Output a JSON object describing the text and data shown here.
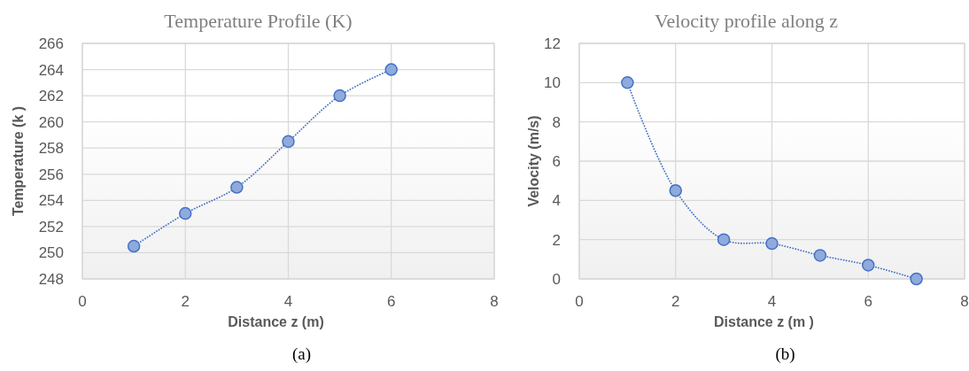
{
  "chart_data": [
    {
      "type": "line",
      "title": "Temperature Profile (K)",
      "xlabel": "Distance z (m)",
      "ylabel": "Temperature (k )",
      "x": [
        1,
        2,
        3,
        4,
        5,
        6
      ],
      "values": [
        250.5,
        253,
        255,
        258.5,
        262,
        264
      ],
      "color": "#4472c4",
      "xlim": [
        0,
        8
      ],
      "xticks": [
        0,
        2,
        4,
        6,
        8
      ],
      "ylim": [
        248,
        266
      ],
      "yticks": [
        248,
        250,
        252,
        254,
        256,
        258,
        260,
        262,
        264,
        266
      ],
      "grid": true,
      "marker": "circle",
      "line_style": "dotted",
      "annotations": [
        "(a)"
      ]
    },
    {
      "type": "line",
      "title": "Velocity profile along z",
      "xlabel": "Distance z (m )",
      "ylabel": "Velocity (m/s)",
      "x": [
        1,
        2,
        3,
        4,
        5,
        6,
        7
      ],
      "values": [
        10,
        4.5,
        2,
        1.8,
        1.2,
        0.7,
        0
      ],
      "color": "#4472c4",
      "xlim": [
        0,
        8
      ],
      "xticks": [
        0,
        2,
        4,
        6,
        8
      ],
      "ylim": [
        0,
        12
      ],
      "yticks": [
        0,
        2,
        4,
        6,
        8,
        10,
        12
      ],
      "grid": true,
      "marker": "circle",
      "line_style": "dotted",
      "annotations": [
        "(b)"
      ]
    }
  ]
}
